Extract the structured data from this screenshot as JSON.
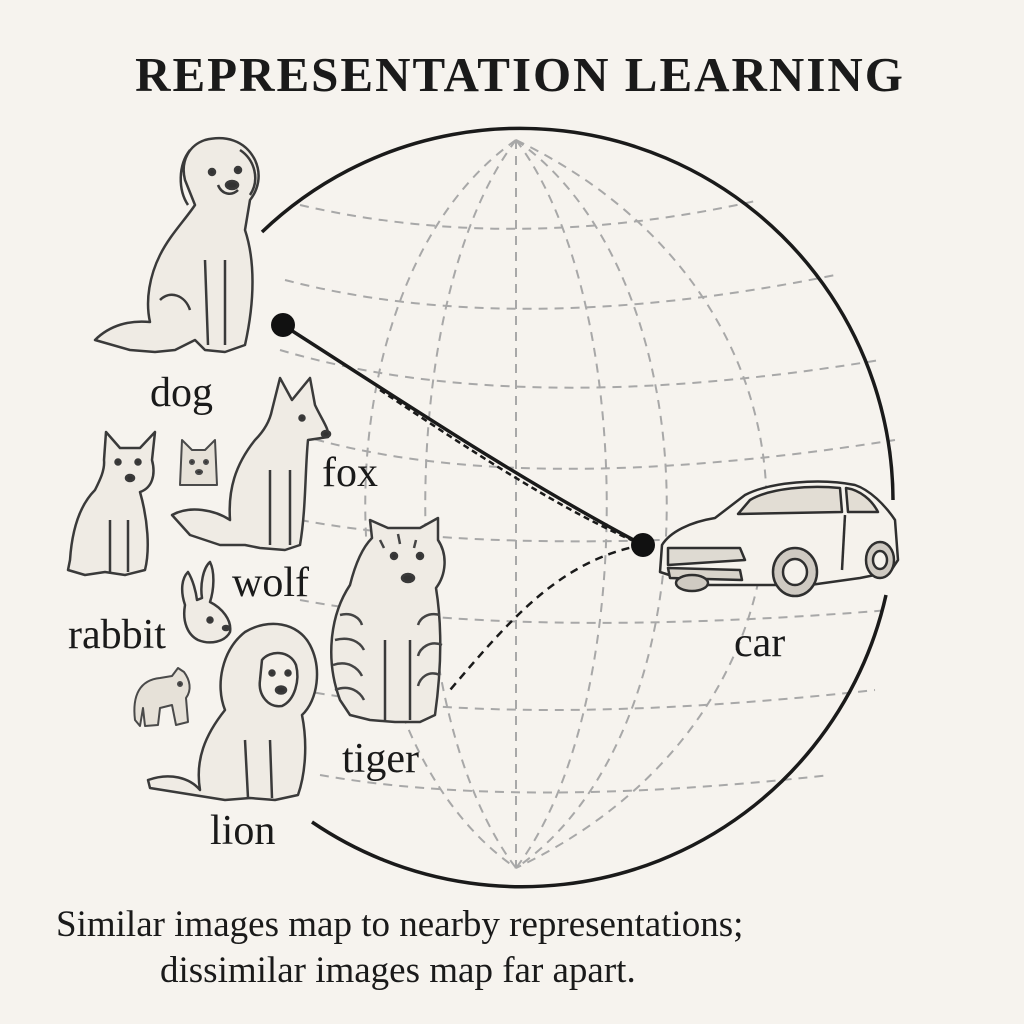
{
  "title": "REPRESENTATION LEARNING",
  "labels": {
    "dog": "dog",
    "fox": "fox",
    "wolf": "wolf",
    "rabbit": "rabbit",
    "tiger": "tiger",
    "lion": "lion",
    "car": "car"
  },
  "caption": {
    "line1": "Similar images map to nearby representations;",
    "line2": "dissimilar images map far apart."
  },
  "colors": {
    "background": "#f6f3ee",
    "ink": "#1a1a1a",
    "grid": "#a8a8a8"
  },
  "icons": [
    "dog-sketch",
    "fox-sketch",
    "wolf-sketch",
    "rabbit-sketch",
    "bear-cub-sketch",
    "lion-sketch",
    "tiger-sketch",
    "car-sketch"
  ]
}
